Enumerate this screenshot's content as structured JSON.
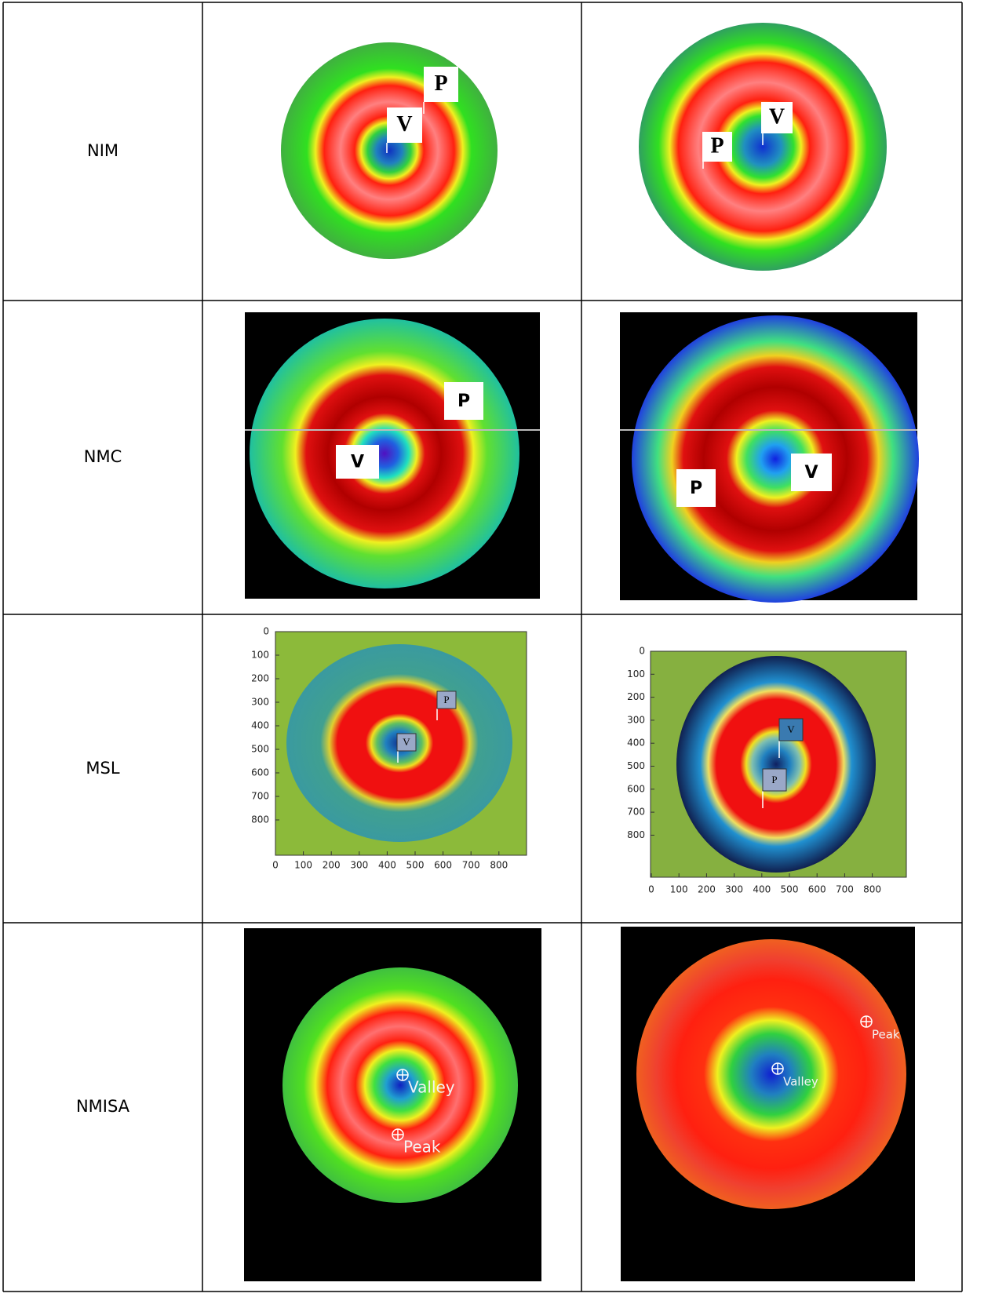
{
  "table": {
    "rows": [
      {
        "label": "NIM",
        "images": [
          {
            "labels": [
              "P",
              "V"
            ]
          },
          {
            "labels": [
              "V",
              "P"
            ]
          }
        ]
      },
      {
        "label": "NMC",
        "images": [
          {
            "labels": [
              "P",
              "V"
            ]
          },
          {
            "labels": [
              "P",
              "V"
            ]
          }
        ]
      },
      {
        "label": "MSL",
        "images": [
          {
            "labels": [
              "P",
              "V"
            ],
            "xticks": [
              0,
              100,
              200,
              300,
              400,
              500,
              600,
              700,
              800
            ],
            "yticks": [
              0,
              100,
              200,
              300,
              400,
              500,
              600,
              700,
              800
            ]
          },
          {
            "labels": [
              "V",
              "P"
            ],
            "xticks": [
              0,
              100,
              200,
              300,
              400,
              500,
              600,
              700,
              800
            ],
            "yticks": [
              0,
              100,
              200,
              300,
              400,
              500,
              600,
              700,
              800
            ]
          }
        ]
      },
      {
        "label": "NMISA",
        "images": [
          {
            "labels": [
              "Valley",
              "Peak"
            ]
          },
          {
            "labels": [
              "Peak",
              "Valley"
            ]
          }
        ]
      }
    ]
  }
}
